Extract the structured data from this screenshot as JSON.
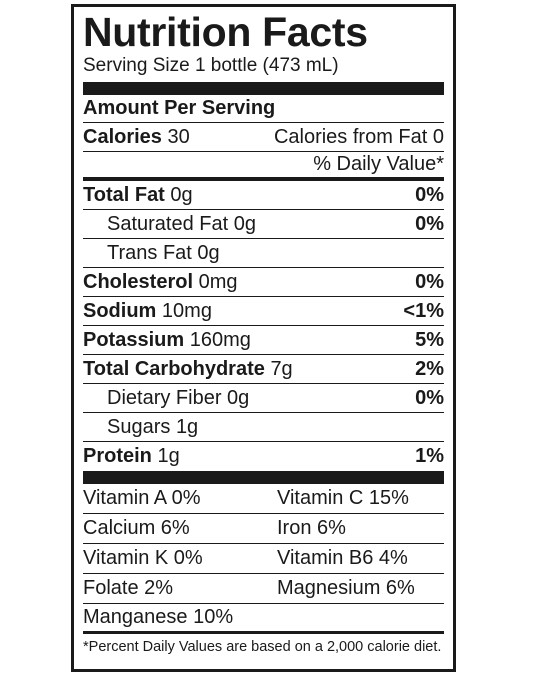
{
  "title": "Nutrition Facts",
  "serving_size": "Serving Size 1 bottle (473 mL)",
  "amount_per_serving": "Amount Per Serving",
  "calories": {
    "label": "Calories",
    "value": "30",
    "from_fat": "Calories from Fat 0"
  },
  "daily_value_header": "% Daily Value*",
  "nutrients": [
    {
      "label": "Total Fat",
      "amount": "0g",
      "dv": "0%"
    },
    {
      "label": "Saturated Fat",
      "amount": "0g",
      "dv": "0%"
    },
    {
      "label": "Trans Fat",
      "amount": "0g",
      "dv": ""
    },
    {
      "label": "Cholesterol",
      "amount": "0mg",
      "dv": "0%"
    },
    {
      "label": "Sodium",
      "amount": "10mg",
      "dv": "<1%"
    },
    {
      "label": "Potassium",
      "amount": "160mg",
      "dv": "5%"
    },
    {
      "label": "Total Carbohydrate",
      "amount": "7g",
      "dv": "2%"
    },
    {
      "label": "Dietary Fiber",
      "amount": "0g",
      "dv": "0%"
    },
    {
      "label": "Sugars",
      "amount": "1g",
      "dv": ""
    },
    {
      "label": "Protein",
      "amount": "1g",
      "dv": "1%"
    }
  ],
  "vitamins": [
    [
      "Vitamin A 0%",
      "Vitamin C 15%"
    ],
    [
      "Calcium 6%",
      "Iron 6%"
    ],
    [
      "Vitamin K 0%",
      "Vitamin B6 4%"
    ],
    [
      "Folate 2%",
      "Magnesium 6%"
    ],
    [
      "Manganese 10%",
      ""
    ]
  ],
  "footnote": "*Percent Daily Values are based on a 2,000 calorie diet."
}
